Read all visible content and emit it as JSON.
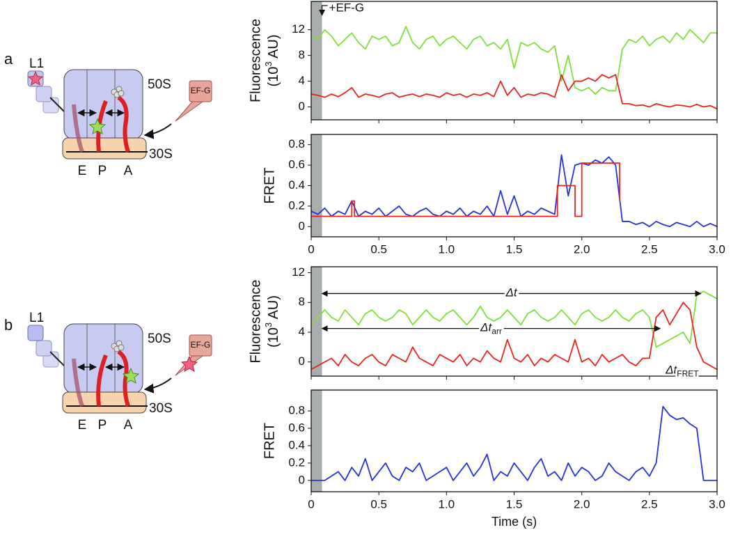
{
  "chart_data": [
    {
      "type": "line",
      "xlim": [
        0,
        3.0
      ],
      "ylim": [
        -2,
        16.4
      ],
      "yticks": [
        0,
        4,
        8,
        12
      ],
      "xticks": [
        0,
        0.5,
        1,
        1.5,
        2,
        2.5,
        3
      ],
      "xtick_labels": false,
      "shade": [
        0,
        0.08
      ],
      "y_label": "Fluorescence",
      "y_label_2": {
        "text": "(10",
        "sup": "3",
        "tail": " AU)"
      },
      "x": [
        0,
        0.05,
        0.1,
        0.15,
        0.2,
        0.25,
        0.3,
        0.35,
        0.4,
        0.45,
        0.5,
        0.55,
        0.6,
        0.65,
        0.7,
        0.75,
        0.8,
        0.85,
        0.9,
        0.95,
        1.0,
        1.05,
        1.1,
        1.15,
        1.2,
        1.25,
        1.3,
        1.35,
        1.4,
        1.45,
        1.5,
        1.55,
        1.6,
        1.65,
        1.7,
        1.75,
        1.8,
        1.85,
        1.9,
        1.95,
        2.0,
        2.05,
        2.1,
        2.15,
        2.2,
        2.25,
        2.3,
        2.35,
        2.4,
        2.45,
        2.5,
        2.55,
        2.6,
        2.65,
        2.7,
        2.75,
        2.8,
        2.85,
        2.9,
        2.95,
        3.0
      ],
      "series": [
        {
          "color": "#7ee03a",
          "values": [
            11,
            10.5,
            12,
            11,
            9.5,
            10.5,
            11.5,
            10,
            9,
            11,
            10.5,
            11,
            9.5,
            10,
            12.5,
            10,
            9,
            10.5,
            11,
            9.5,
            10.5,
            11,
            10,
            9,
            10.5,
            11,
            9.5,
            10,
            9,
            10.5,
            6,
            10,
            9.5,
            10,
            9,
            8.5,
            9.5,
            4,
            8,
            3,
            2.5,
            3,
            2,
            3,
            2.5,
            2.5,
            9,
            10.5,
            10,
            11,
            9.5,
            10.5,
            11,
            10,
            11.5,
            10.5,
            12,
            11,
            10,
            11.5,
            11.5
          ]
        },
        {
          "color": "#e8241c",
          "values": [
            2,
            1.8,
            1.5,
            2,
            1.6,
            2.2,
            3,
            1.5,
            2,
            1.8,
            1.5,
            2,
            2.2,
            1.5,
            1.8,
            2,
            1.6,
            2,
            1.8,
            1.5,
            2.2,
            1.8,
            2,
            1.5,
            2,
            1.8,
            2.2,
            1.6,
            4,
            1.8,
            3,
            1.5,
            2,
            1.8,
            2.2,
            2,
            1.5,
            5,
            2.5,
            4,
            4,
            4.5,
            4,
            5,
            4.5,
            5,
            0.5,
            0.5,
            0.2,
            0.3,
            0,
            0.5,
            0.2,
            0,
            0.3,
            0.2,
            0,
            0.4,
            0,
            0.2,
            -0.3
          ]
        }
      ],
      "annotations": [
        {
          "kind": "pointer",
          "text": "+EF-G",
          "x": 0.08
        }
      ]
    },
    {
      "type": "line",
      "xlim": [
        0,
        3.0
      ],
      "ylim": [
        -0.1,
        0.9
      ],
      "yticks": [
        0,
        0.2,
        0.4,
        0.6,
        0.8
      ],
      "xticks": [
        0,
        0.5,
        {
          "value": 1,
          "label": "1.0"
        },
        1.5,
        {
          "value": 2,
          "label": "2.0"
        },
        2.5,
        {
          "value": 3,
          "label": "3.0"
        }
      ],
      "xtick_labels": true,
      "shade": [
        0,
        0.08
      ],
      "y_label": "FRET",
      "x": [
        0,
        0.05,
        0.1,
        0.15,
        0.2,
        0.25,
        0.3,
        0.35,
        0.4,
        0.45,
        0.5,
        0.55,
        0.6,
        0.65,
        0.7,
        0.75,
        0.8,
        0.85,
        0.9,
        0.95,
        1.0,
        1.05,
        1.1,
        1.15,
        1.2,
        1.25,
        1.3,
        1.35,
        1.4,
        1.45,
        1.5,
        1.55,
        1.6,
        1.65,
        1.7,
        1.75,
        1.8,
        1.85,
        1.9,
        1.95,
        2.0,
        2.05,
        2.1,
        2.15,
        2.2,
        2.25,
        2.3,
        2.35,
        2.4,
        2.45,
        2.5,
        2.55,
        2.6,
        2.65,
        2.7,
        2.75,
        2.8,
        2.85,
        2.9,
        2.95,
        3.0
      ],
      "series": [
        {
          "color": "#2233dd",
          "values": [
            0.15,
            0.12,
            0.18,
            0.1,
            0.15,
            0.12,
            0.25,
            0.1,
            0.15,
            0.12,
            0.18,
            0.1,
            0.15,
            0.2,
            0.12,
            0.1,
            0.15,
            0.18,
            0.12,
            0.1,
            0.15,
            0.12,
            0.18,
            0.1,
            0.15,
            0.12,
            0.2,
            0.1,
            0.35,
            0.12,
            0.3,
            0.1,
            0.15,
            0.12,
            0.18,
            0.15,
            0.12,
            0.7,
            0.3,
            0.6,
            0.62,
            0.6,
            0.65,
            0.62,
            0.68,
            0.6,
            0.05,
            0.05,
            0.02,
            0.04,
            0,
            0.05,
            0.02,
            0,
            0.04,
            0.02,
            0,
            0.05,
            0,
            0.03,
            0
          ]
        },
        {
          "color": "#e8241c",
          "x": [
            0,
            0.3,
            0.3,
            0.32,
            0.32,
            1.82,
            1.82,
            1.95,
            1.95,
            2.0,
            2.0,
            2.28,
            2.28
          ],
          "values": [
            0.1,
            0.1,
            0.25,
            0.25,
            0.1,
            0.1,
            0.4,
            0.4,
            0.1,
            0.1,
            0.62,
            0.62,
            0.25
          ]
        }
      ],
      "annotations": []
    },
    {
      "type": "line",
      "xlim": [
        0,
        3.0
      ],
      "ylim": [
        -1.9,
        12.8
      ],
      "yticks": [
        0,
        4,
        8,
        12
      ],
      "xticks": [
        0,
        0.5,
        1,
        1.5,
        2,
        2.5,
        3
      ],
      "xtick_labels": false,
      "shade": [
        0,
        0.08
      ],
      "y_label": "Fluorescence",
      "y_label_2": {
        "text": "(10",
        "sup": "3",
        "tail": " AU)"
      },
      "x": [
        0,
        0.05,
        0.1,
        0.15,
        0.2,
        0.25,
        0.3,
        0.35,
        0.4,
        0.45,
        0.5,
        0.55,
        0.6,
        0.65,
        0.7,
        0.75,
        0.8,
        0.85,
        0.9,
        0.95,
        1.0,
        1.05,
        1.1,
        1.15,
        1.2,
        1.25,
        1.3,
        1.35,
        1.4,
        1.45,
        1.5,
        1.55,
        1.6,
        1.65,
        1.7,
        1.75,
        1.8,
        1.85,
        1.9,
        1.95,
        2.0,
        2.05,
        2.1,
        2.15,
        2.2,
        2.25,
        2.3,
        2.35,
        2.4,
        2.45,
        2.5,
        2.55,
        2.6,
        2.65,
        2.7,
        2.75,
        2.8,
        2.85,
        2.9,
        2.95,
        3.0
      ],
      "series": [
        {
          "color": "#7ee03a",
          "values": [
            5,
            6,
            7,
            6,
            5.5,
            7,
            6,
            5,
            6.5,
            7,
            6,
            5.5,
            6,
            7,
            6.5,
            5,
            6,
            7,
            6,
            5.5,
            6.5,
            7,
            6,
            5,
            6,
            7.5,
            6,
            5.5,
            6,
            7,
            6,
            5,
            6.5,
            7,
            6,
            5.5,
            6,
            7,
            6,
            5,
            6.5,
            7,
            6,
            5.5,
            6,
            7,
            6,
            5.5,
            6.5,
            7,
            6,
            2,
            2.5,
            3,
            3.5,
            4,
            2.5,
            9,
            9.5,
            9,
            8.5
          ]
        },
        {
          "color": "#e8241c",
          "values": [
            -1,
            -0.5,
            0,
            0.5,
            -0.5,
            1,
            0,
            -0.5,
            0.5,
            1,
            0,
            -0.5,
            1,
            0.5,
            0,
            2,
            0.5,
            0,
            -0.5,
            1,
            0.5,
            0,
            1,
            -0.5,
            0.5,
            0,
            1.5,
            0.5,
            0,
            3,
            0.5,
            0,
            1,
            -0.5,
            0.5,
            0,
            1,
            0.5,
            0,
            3,
            0,
            0.5,
            -0.5,
            1,
            0,
            0.5,
            1,
            0,
            -0.5,
            0.5,
            0.5,
            6,
            7,
            5,
            6.5,
            8,
            7,
            2,
            0,
            -0.5,
            -1
          ]
        }
      ],
      "annotations": [
        {
          "kind": "span",
          "text": "Δt",
          "from": 0.08,
          "to": 2.88,
          "y": 9.2
        },
        {
          "kind": "span",
          "text": "Δt",
          "sub": "arr",
          "from": 0.08,
          "to": 2.58,
          "y": 4.5
        },
        {
          "kind": "label",
          "text": "Δt",
          "sub": "FRET",
          "x": 2.62,
          "y": -1.2
        }
      ]
    },
    {
      "type": "line",
      "xlim": [
        0,
        3.0
      ],
      "ylim": [
        -0.13,
        1.04
      ],
      "yticks": [
        0,
        0.2,
        0.4,
        0.6,
        0.8
      ],
      "xticks": [
        0,
        0.5,
        {
          "value": 1,
          "label": "1.0"
        },
        1.5,
        {
          "value": 2,
          "label": "2.0"
        },
        2.5,
        {
          "value": 3,
          "label": "3.0"
        }
      ],
      "xtick_labels": true,
      "shade": [
        0,
        0.08
      ],
      "y_label": "FRET",
      "x_label": "Time (s)",
      "x": [
        0,
        0.05,
        0.1,
        0.15,
        0.2,
        0.25,
        0.3,
        0.35,
        0.4,
        0.45,
        0.5,
        0.55,
        0.6,
        0.65,
        0.7,
        0.75,
        0.8,
        0.85,
        0.9,
        0.95,
        1.0,
        1.05,
        1.1,
        1.15,
        1.2,
        1.25,
        1.3,
        1.35,
        1.4,
        1.45,
        1.5,
        1.55,
        1.6,
        1.65,
        1.7,
        1.75,
        1.8,
        1.85,
        1.9,
        1.95,
        2.0,
        2.05,
        2.1,
        2.15,
        2.2,
        2.25,
        2.3,
        2.35,
        2.4,
        2.45,
        2.5,
        2.55,
        2.6,
        2.65,
        2.7,
        2.75,
        2.8,
        2.85,
        2.9,
        2.95,
        3.0
      ],
      "series": [
        {
          "color": "#2233dd",
          "values": [
            0,
            0,
            0,
            0.05,
            0.1,
            0,
            0.15,
            0.05,
            0.25,
            0,
            0.1,
            0.2,
            0.05,
            0,
            0.15,
            0.1,
            0.2,
            0,
            0.05,
            0.1,
            0.15,
            0,
            0.1,
            0.2,
            0.05,
            0.15,
            0.3,
            0,
            0.1,
            0.05,
            0.2,
            0.1,
            0,
            0.15,
            0.25,
            0.05,
            0.1,
            0,
            0.2,
            0.05,
            0.15,
            0.1,
            0,
            0.05,
            0.2,
            0.1,
            0.05,
            0,
            0.1,
            0.15,
            0.05,
            0.2,
            0.85,
            0.75,
            0.7,
            0.72,
            0.65,
            0.6,
            0,
            0,
            0
          ]
        }
      ],
      "annotations": []
    }
  ],
  "diagrams": [
    {
      "panel": "a",
      "l1": "L1",
      "large": "50S",
      "small": "30S",
      "e": "E",
      "p": "P",
      "a": "A",
      "efg": "EF-G"
    },
    {
      "panel": "b",
      "l1": "L1",
      "large": "50S",
      "small": "30S",
      "e": "E",
      "p": "P",
      "a": "A",
      "efg": "EF-G"
    }
  ]
}
